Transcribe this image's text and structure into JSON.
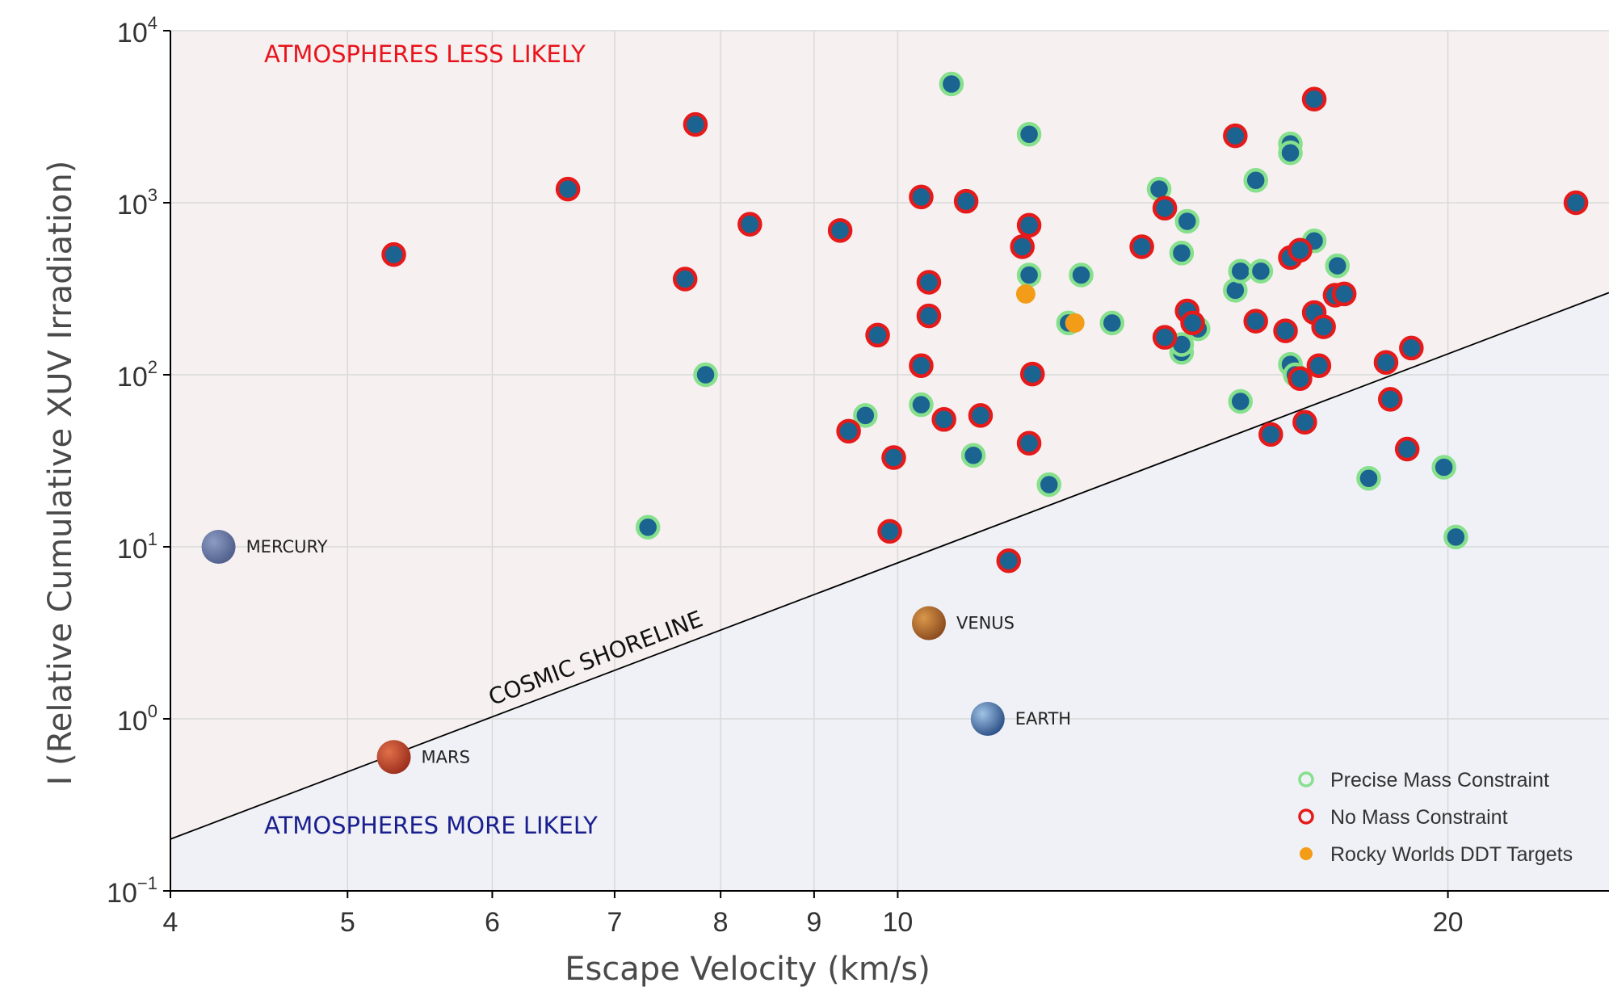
{
  "chart_data": {
    "type": "scatter",
    "xlabel": "Escape Velocity (km/s)",
    "ylabel": "I (Relative Cumulative XUV Irradiation)",
    "x_scale": "log",
    "y_scale": "log",
    "xlim": [
      4,
      24.5
    ],
    "ylim": [
      0.1,
      10000
    ],
    "x_ticks": [
      4,
      5,
      6,
      7,
      8,
      9,
      10,
      20
    ],
    "y_ticks": [
      {
        "value": 0.1,
        "base": "10",
        "exp": "−1"
      },
      {
        "value": 1,
        "base": "10",
        "exp": "0"
      },
      {
        "value": 10,
        "base": "10",
        "exp": "1"
      },
      {
        "value": 100,
        "base": "10",
        "exp": "2"
      },
      {
        "value": 1000,
        "base": "10",
        "exp": "3"
      },
      {
        "value": 10000,
        "base": "10",
        "exp": "4"
      }
    ],
    "grid": true,
    "legend_position": "bottom-right",
    "regions": {
      "upper_label": "ATMOSPHERES LESS LIKELY",
      "lower_label": "ATMOSPHERES MORE LIKELY",
      "upper_color": "#f6f0f0",
      "lower_color": "#eff1f6",
      "upper_text_color": "#e8141c",
      "lower_text_color": "#1a1f8f"
    },
    "shoreline": {
      "label": "COSMIC SHORELINE",
      "points": [
        [
          4,
          0.2
        ],
        [
          24.5,
          300
        ]
      ]
    },
    "colors": {
      "marker_fill": "#1b6491",
      "precise_edge": "#86e08c",
      "nomass_edge": "#e51a1a",
      "ddt_fill": "#f39c18",
      "line": "#000000"
    },
    "legend": [
      {
        "key": "precise",
        "label": "Precise Mass Constraint"
      },
      {
        "key": "nomass",
        "label": "No Mass Constraint"
      },
      {
        "key": "ddt",
        "label": "Rocky Worlds DDT Targets"
      }
    ],
    "solar_system": [
      {
        "name": "MERCURY",
        "x": 4.25,
        "y": 10,
        "colors": [
          "#8b9cc4",
          "#4f5e8a"
        ]
      },
      {
        "name": "MARS",
        "x": 5.3,
        "y": 0.6,
        "colors": [
          "#e0704a",
          "#9b2e1c"
        ]
      },
      {
        "name": "VENUS",
        "x": 10.4,
        "y": 3.6,
        "colors": [
          "#d9974a",
          "#8a4a1e"
        ]
      },
      {
        "name": "EARTH",
        "x": 11.2,
        "y": 1.0,
        "colors": [
          "#9fc3e6",
          "#2c4f86"
        ]
      }
    ],
    "series": [
      {
        "name": "Precise Mass Constraint",
        "key": "precise",
        "points": [
          [
            10.7,
            4900
          ],
          [
            11.8,
            2500
          ],
          [
            11.8,
            380
          ],
          [
            12.4,
            200
          ],
          [
            12.6,
            380
          ],
          [
            13.1,
            200
          ],
          [
            13.9,
            1200
          ],
          [
            14.3,
            510
          ],
          [
            14.4,
            780
          ],
          [
            14.6,
            185
          ],
          [
            14.3,
            135
          ],
          [
            14.3,
            150
          ],
          [
            15.3,
            310
          ],
          [
            15.4,
            400
          ],
          [
            15.4,
            70
          ],
          [
            15.7,
            1350
          ],
          [
            15.8,
            400
          ],
          [
            16.4,
            2200
          ],
          [
            16.4,
            1950
          ],
          [
            16.4,
            115
          ],
          [
            16.5,
            100
          ],
          [
            16.9,
            600
          ],
          [
            17.4,
            430
          ],
          [
            19.9,
            29
          ],
          [
            18.1,
            25
          ],
          [
            20.2,
            11.4
          ],
          [
            7.3,
            13
          ],
          [
            7.85,
            100
          ],
          [
            9.6,
            58
          ],
          [
            10.3,
            67
          ],
          [
            11.0,
            34
          ],
          [
            12.1,
            23
          ]
        ]
      },
      {
        "name": "No Mass Constraint",
        "key": "nomass",
        "points": [
          [
            5.3,
            500
          ],
          [
            6.6,
            1200
          ],
          [
            7.75,
            2850
          ],
          [
            7.65,
            360
          ],
          [
            8.3,
            750
          ],
          [
            9.3,
            690
          ],
          [
            9.4,
            47
          ],
          [
            9.75,
            170
          ],
          [
            9.95,
            33
          ],
          [
            9.9,
            12.3
          ],
          [
            10.3,
            1080
          ],
          [
            10.3,
            113
          ],
          [
            10.4,
            345
          ],
          [
            10.4,
            220
          ],
          [
            10.6,
            55
          ],
          [
            10.9,
            1020
          ],
          [
            11.1,
            58
          ],
          [
            11.7,
            555
          ],
          [
            11.8,
            740
          ],
          [
            11.85,
            101
          ],
          [
            11.8,
            40
          ],
          [
            11.5,
            8.3
          ],
          [
            13.6,
            555
          ],
          [
            14.0,
            930
          ],
          [
            14.0,
            165
          ],
          [
            14.4,
            235
          ],
          [
            14.5,
            200
          ],
          [
            15.3,
            2450
          ],
          [
            15.7,
            205
          ],
          [
            16.0,
            45
          ],
          [
            16.3,
            180
          ],
          [
            16.4,
            480
          ],
          [
            16.6,
            95
          ],
          [
            16.6,
            530
          ],
          [
            16.9,
            4000
          ],
          [
            16.9,
            230
          ],
          [
            17.0,
            113
          ],
          [
            17.1,
            190
          ],
          [
            17.35,
            290
          ],
          [
            17.55,
            295
          ],
          [
            18.5,
            118
          ],
          [
            18.6,
            72
          ],
          [
            19.0,
            37
          ],
          [
            19.1,
            143
          ],
          [
            23.5,
            1000
          ],
          [
            16.7,
            53
          ]
        ]
      },
      {
        "name": "Rocky Worlds DDT Targets",
        "key": "ddt",
        "points": [
          [
            11.75,
            295
          ],
          [
            12.5,
            200
          ]
        ]
      }
    ]
  }
}
